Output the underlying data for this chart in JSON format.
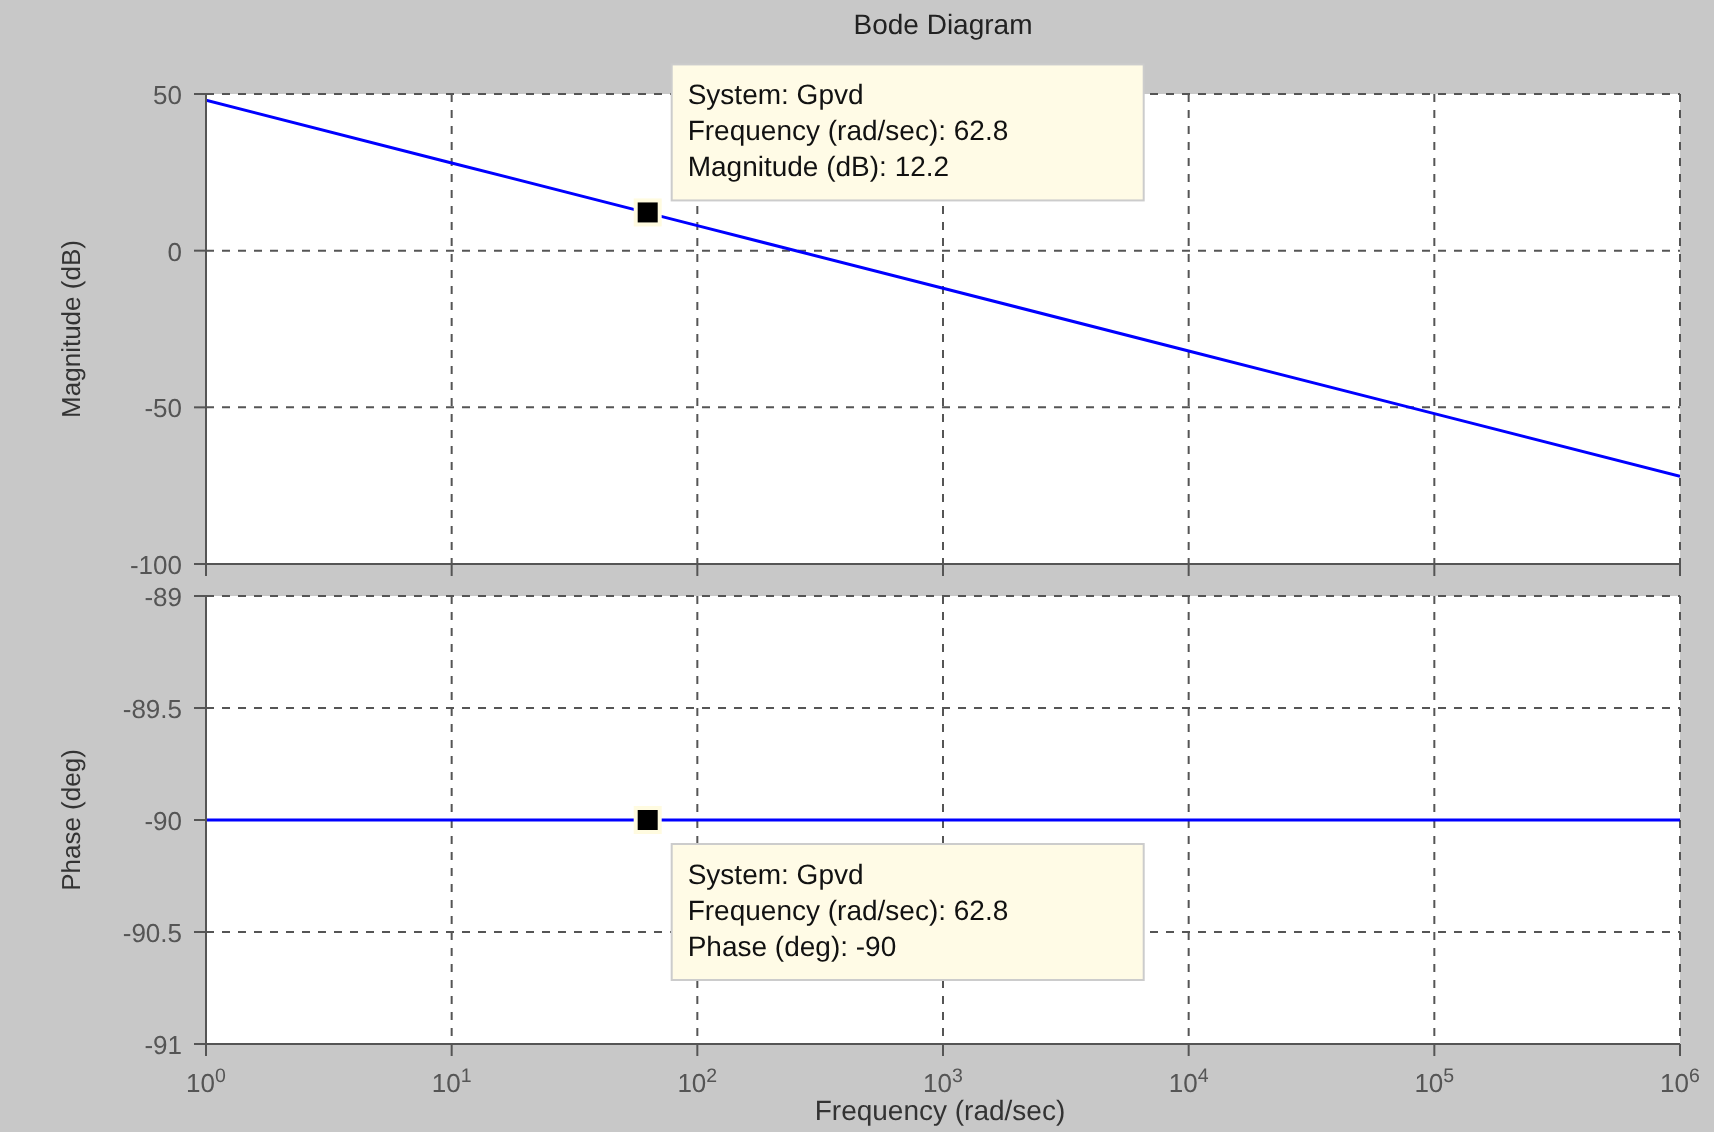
{
  "chart_data": [
    {
      "type": "line",
      "title": "Bode Diagram",
      "ylabel": "Magnitude (dB)",
      "x": [
        1,
        10,
        100,
        1000,
        10000,
        100000,
        1000000
      ],
      "series": [
        {
          "color": "#0000ff",
          "values": [
            48,
            28,
            8,
            -12,
            -32,
            -52,
            -72
          ]
        }
      ],
      "xlim": [
        1,
        1000000
      ],
      "ylim": [
        -100,
        50
      ],
      "yticks": [
        -100,
        -50,
        0,
        50
      ],
      "xticks": [
        {
          "value": 1,
          "label": null
        },
        {
          "value": 10,
          "label": null
        },
        {
          "value": 100,
          "label": null
        },
        {
          "value": 1000,
          "label": null
        },
        {
          "value": 10000,
          "label": null
        },
        {
          "value": 100000,
          "label": null
        },
        {
          "value": 1000000,
          "label": null
        }
      ],
      "log": "x",
      "grid": true,
      "marker": "none",
      "line_style": "solid",
      "tick_labels": "y",
      "annotations": [
        {
          "text": "System: Gpvd\nFrequency (rad/sec): 62.8\nMagnitude (dB): 12.2",
          "x": 62.8,
          "y": 12.2
        }
      ]
    },
    {
      "type": "line",
      "ylabel": "Phase (deg)",
      "xlabel": "Frequency  (rad/sec)",
      "x": [
        1,
        10,
        100,
        1000,
        10000,
        100000,
        1000000
      ],
      "series": [
        {
          "color": "#0000ff",
          "values": [
            -90,
            -90,
            -90,
            -90,
            -90,
            -90,
            -90
          ]
        }
      ],
      "xlim": [
        1,
        1000000
      ],
      "ylim": [
        -91,
        -89
      ],
      "yticks": [
        -91,
        -90.5,
        -90,
        -89.5,
        -89
      ],
      "xticks": [
        {
          "value": 1,
          "label": "10$^{0}$"
        },
        {
          "value": 10,
          "label": "10$^{1}$"
        },
        {
          "value": 100,
          "label": "10$^{2}$"
        },
        {
          "value": 1000,
          "label": "10$^{3}$"
        },
        {
          "value": 10000,
          "label": "10$^{4}$"
        },
        {
          "value": 100000,
          "label": "10$^{5}$"
        },
        {
          "value": 1000000,
          "label": "10$^{6}$"
        }
      ],
      "log": "x",
      "grid": true,
      "marker": "none",
      "line_style": "solid",
      "annotations": [
        {
          "text": "System: Gpvd\nFrequency (rad/sec): 62.8\nPhase (deg): -90",
          "x": 62.8,
          "y": -90
        }
      ]
    }
  ]
}
